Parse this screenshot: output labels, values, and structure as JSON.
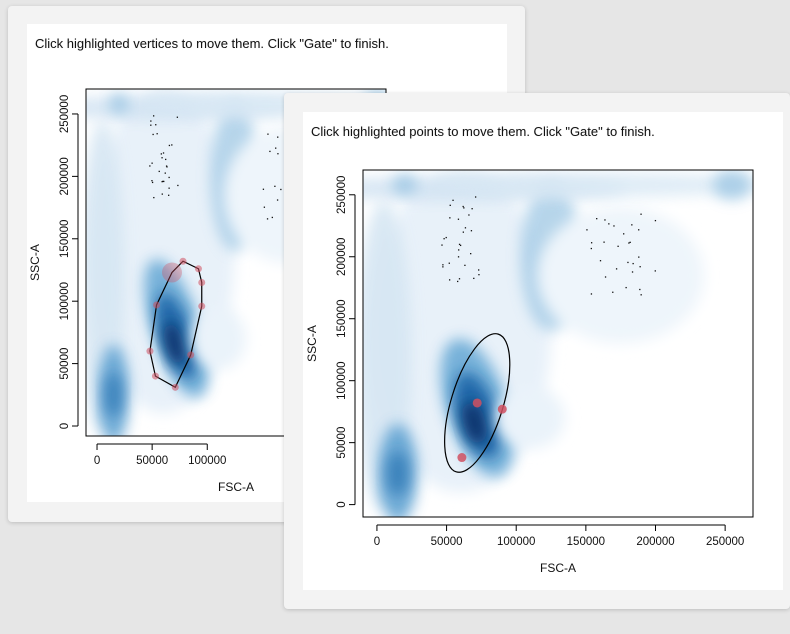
{
  "windows": [
    {
      "id": "back",
      "instruction": "Click highlighted vertices to move them. Click \"Gate\" to finish.",
      "chart_data": {
        "type": "heatmap",
        "xlabel": "FSC-A",
        "ylabel": "SSC-A",
        "xlim": [
          -10000,
          262143
        ],
        "ylim": [
          -8000,
          270000
        ],
        "xticks": [
          0,
          50000,
          100000
        ],
        "yticks": [
          0,
          50000,
          100000,
          150000,
          200000,
          250000
        ],
        "gate": {
          "shape": "polygon",
          "vertices": [
            [
              53000,
              40000
            ],
            [
              71000,
              31000
            ],
            [
              85000,
              57000
            ],
            [
              95000,
              96000
            ],
            [
              95000,
              115000
            ],
            [
              92000,
              126000
            ],
            [
              78000,
              132000
            ],
            [
              68000,
              123000
            ],
            [
              54000,
              97000
            ],
            [
              48000,
              60000
            ]
          ],
          "selected_vertex": 7
        },
        "colors": {
          "density_light": "#d9e8f5",
          "density_dark": "#08306b",
          "gate_line": "#000000",
          "handle": "#d05060"
        }
      }
    },
    {
      "id": "front",
      "instruction": "Click highlighted points to move them. Click \"Gate\" to finish.",
      "chart_data": {
        "type": "heatmap",
        "xlabel": "FSC-A",
        "ylabel": "SSC-A",
        "xlim": [
          -10000,
          270000
        ],
        "ylim": [
          -10000,
          270000
        ],
        "xticks": [
          0,
          50000,
          100000,
          150000,
          200000,
          250000
        ],
        "yticks": [
          0,
          50000,
          100000,
          150000,
          200000,
          250000
        ],
        "gate": {
          "shape": "ellipse",
          "center": [
            72000,
            82000
          ],
          "handles": [
            [
              61000,
              38000
            ],
            [
              90000,
              77000
            ],
            [
              72000,
              82000
            ]
          ]
        },
        "colors": {
          "density_light": "#d9e8f5",
          "density_dark": "#08306b",
          "gate_line": "#000000",
          "handle": "#d05060"
        }
      }
    }
  ]
}
